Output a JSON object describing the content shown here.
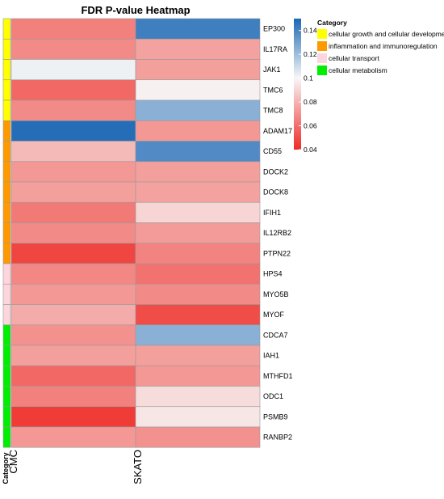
{
  "chart_data": {
    "type": "heatmap",
    "title": "FDR P-value Heatmap",
    "columns": [
      "CMC",
      "SKATO"
    ],
    "rows": [
      {
        "gene": "EP300",
        "category": "cellular growth and cellular development",
        "values": [
          0.065,
          0.142
        ]
      },
      {
        "gene": "IL17RA",
        "category": "cellular growth and cellular development",
        "values": [
          0.068,
          0.075
        ]
      },
      {
        "gene": "JAK1",
        "category": "cellular growth and cellular development",
        "values": [
          0.102,
          0.074
        ]
      },
      {
        "gene": "TMC6",
        "category": "cellular growth and cellular development",
        "values": [
          0.058,
          0.098
        ]
      },
      {
        "gene": "TMC8",
        "category": "cellular growth and cellular development",
        "values": [
          0.068,
          0.125
        ]
      },
      {
        "gene": "ADAM17",
        "category": "inflammation and immunoregulation",
        "values": [
          0.148,
          0.072
        ]
      },
      {
        "gene": "CD55",
        "category": "inflammation and immunoregulation",
        "values": [
          0.082,
          0.138
        ]
      },
      {
        "gene": "DOCK2",
        "category": "inflammation and immunoregulation",
        "values": [
          0.072,
          0.074
        ]
      },
      {
        "gene": "DOCK8",
        "category": "inflammation and immunoregulation",
        "values": [
          0.074,
          0.075
        ]
      },
      {
        "gene": "IFIH1",
        "category": "inflammation and immunoregulation",
        "values": [
          0.063,
          0.09
        ]
      },
      {
        "gene": "IL12RB2",
        "category": "inflammation and immunoregulation",
        "values": [
          0.068,
          0.073
        ]
      },
      {
        "gene": "PTPN22",
        "category": "inflammation and immunoregulation",
        "values": [
          0.048,
          0.066
        ]
      },
      {
        "gene": "HPS4",
        "category": "cellular transport",
        "values": [
          0.067,
          0.061
        ]
      },
      {
        "gene": "MYO5B",
        "category": "cellular transport",
        "values": [
          0.072,
          0.068
        ]
      },
      {
        "gene": "MYOF",
        "category": "cellular transport",
        "values": [
          0.078,
          0.05
        ]
      },
      {
        "gene": "CDCA7",
        "category": "cellular metabolism",
        "values": [
          0.07,
          0.125
        ]
      },
      {
        "gene": "IAH1",
        "category": "cellular metabolism",
        "values": [
          0.074,
          0.074
        ]
      },
      {
        "gene": "MTHFD1",
        "category": "cellular metabolism",
        "values": [
          0.058,
          0.072
        ]
      },
      {
        "gene": "ODC1",
        "category": "cellular metabolism",
        "values": [
          0.065,
          0.092
        ]
      },
      {
        "gene": "PSMB9",
        "category": "cellular metabolism",
        "values": [
          0.045,
          0.095
        ]
      },
      {
        "gene": "RANBP2",
        "category": "cellular metabolism",
        "values": [
          0.072,
          0.07
        ]
      }
    ],
    "color_scale": {
      "min": 0.04,
      "max": 0.15,
      "ticks": [
        "0.14",
        "0.12",
        "0.1",
        "0.08",
        "0.06",
        "0.04"
      ],
      "tick_values": [
        0.14,
        0.12,
        0.1,
        0.08,
        0.06,
        0.04
      ],
      "stops": [
        {
          "value": 0.04,
          "color": "#ee2b26"
        },
        {
          "value": 0.1,
          "color": "#f7f7f7"
        },
        {
          "value": 0.15,
          "color": "#1c68b4"
        }
      ]
    },
    "legend": {
      "title": "Category",
      "position": "top-right",
      "entries": [
        {
          "label": "cellular growth and cellular development",
          "color": "#ffff00"
        },
        {
          "label": "inflammation and immunoregulation",
          "color": "#ff9900"
        },
        {
          "label": "cellular transport",
          "color": "#fcd5dd"
        },
        {
          "label": "cellular metabolism",
          "color": "#00ee00"
        }
      ]
    },
    "annotation_label": "Category"
  }
}
